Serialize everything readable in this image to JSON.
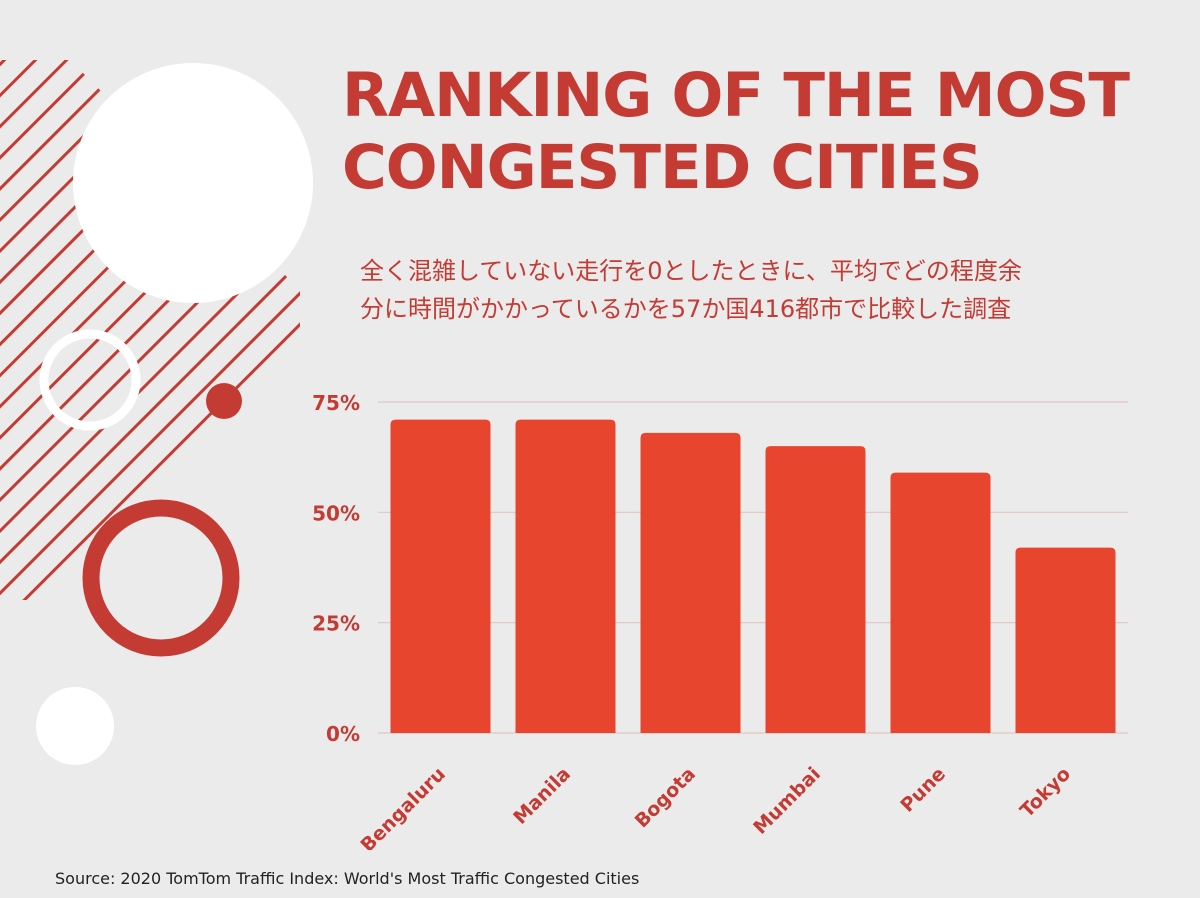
{
  "title_lines": [
    "RANKING OF THE MOST",
    "CONGESTED CITIES"
  ],
  "subtitle_lines": [
    "全く混雑していない走行を0としたときに、平均でどの程度余",
    "分に時間がかかっているかを57か国416都市で比較した調査"
  ],
  "source": "Source: 2020 TomTom Traffic Index: World's Most Traffic Congested Cities",
  "colors": {
    "bar": "#e8452f",
    "text": "#c43b34",
    "background": "#ecebeb",
    "grid": "#e0c6c2"
  },
  "chart_data": {
    "type": "bar",
    "categories": [
      "Bengaluru",
      "Manila",
      "Bogota",
      "Mumbai",
      "Pune",
      "Tokyo"
    ],
    "values": [
      71,
      71,
      68,
      65,
      59,
      42
    ],
    "yticks": [
      "0%",
      "25%",
      "50%",
      "75%"
    ],
    "ytick_values": [
      0,
      25,
      50,
      75
    ],
    "ylim": [
      0,
      75
    ],
    "grid": true,
    "xlabel": "",
    "ylabel": ""
  }
}
